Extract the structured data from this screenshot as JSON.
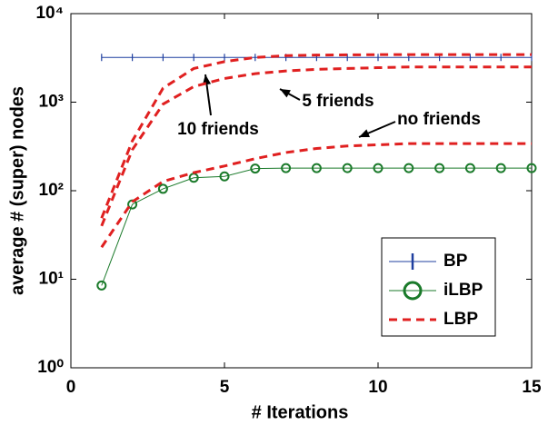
{
  "chart_data": {
    "type": "line",
    "xlabel": "# Iterations",
    "ylabel": "average # (super) nodes",
    "xlim": [
      0,
      15
    ],
    "xticks": [
      0,
      5,
      10,
      15
    ],
    "ylim": [
      1,
      10000
    ],
    "yscale": "log",
    "yticks": [
      {
        "value": 1,
        "label": "10⁰"
      },
      {
        "value": 10,
        "label": "10¹"
      },
      {
        "value": 100,
        "label": "10²"
      },
      {
        "value": 1000,
        "label": "10³"
      },
      {
        "value": 10000,
        "label": "10⁴"
      }
    ],
    "legend": "lower right",
    "x": [
      1,
      2,
      3,
      4,
      5,
      6,
      7,
      8,
      9,
      10,
      11,
      12,
      13,
      14,
      15
    ],
    "series": [
      {
        "name": "BP",
        "color": "#1f3f9f",
        "marker": "|",
        "values": [
          3200,
          3200,
          3200,
          3200,
          3200,
          3200,
          3200,
          3200,
          3200,
          3200,
          3200,
          3200,
          3200,
          3200,
          3200
        ]
      },
      {
        "name": "iLBP",
        "color": "#1a7a2a",
        "marker": "o",
        "values": [
          8.5,
          70,
          105,
          140,
          145,
          178,
          180,
          180,
          180,
          180,
          180,
          180,
          180,
          180,
          180
        ]
      },
      {
        "name": "LBP",
        "color": "#e02020",
        "dashed": true,
        "curves": [
          {
            "annotation": "10 friends",
            "values": [
              49,
              365,
              1440,
              2400,
              2870,
              3200,
              3350,
              3400,
              3420,
              3440,
              3450,
              3450,
              3450,
              3450,
              3450
            ]
          },
          {
            "annotation": "5 friends",
            "values": [
              40,
              290,
              950,
              1500,
              1850,
              2100,
              2250,
              2350,
              2400,
              2450,
              2500,
              2500,
              2500,
              2500,
              2500
            ]
          },
          {
            "annotation": "no friends",
            "values": [
              23,
              75,
              127,
              160,
              190,
              230,
              270,
              300,
              320,
              330,
              340,
              340,
              340,
              340,
              340
            ]
          }
        ]
      }
    ]
  }
}
